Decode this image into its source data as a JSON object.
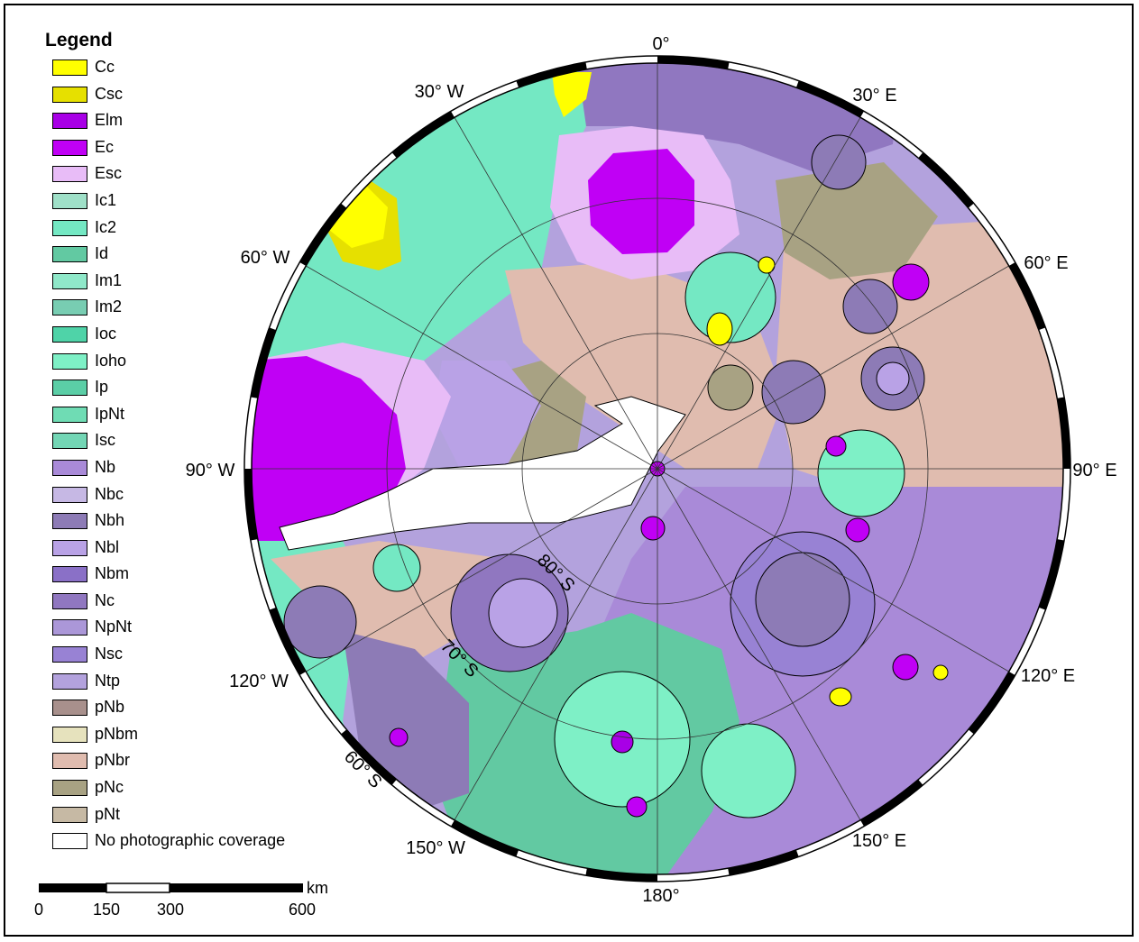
{
  "legend": {
    "title": "Legend",
    "items": [
      {
        "code": "Cc",
        "color": "#ffff00"
      },
      {
        "code": "Csc",
        "color": "#e6e000"
      },
      {
        "code": "Elm",
        "color": "#a800e6"
      },
      {
        "code": "Ec",
        "color": "#c000f5"
      },
      {
        "code": "Esc",
        "color": "#e8bcf7"
      },
      {
        "code": "Ic1",
        "color": "#9fe0c8"
      },
      {
        "code": "Ic2",
        "color": "#74e8c3"
      },
      {
        "code": "Id",
        "color": "#62c9a2"
      },
      {
        "code": "Im1",
        "color": "#8fe8c9"
      },
      {
        "code": "Im2",
        "color": "#78cdb2"
      },
      {
        "code": "Ioc",
        "color": "#4fd3a8"
      },
      {
        "code": "Ioho",
        "color": "#7ef0c6"
      },
      {
        "code": "Ip",
        "color": "#5bcea6"
      },
      {
        "code": "IpNt",
        "color": "#6fdcb4"
      },
      {
        "code": "Isc",
        "color": "#73d6b5"
      },
      {
        "code": "Nb",
        "color": "#a98ad8"
      },
      {
        "code": "Nbc",
        "color": "#c6b8e4"
      },
      {
        "code": "Nbh",
        "color": "#8d7bb6"
      },
      {
        "code": "Nbl",
        "color": "#b9a2e6"
      },
      {
        "code": "Nbm",
        "color": "#8a70c7"
      },
      {
        "code": "Nc",
        "color": "#9077c0"
      },
      {
        "code": "NpNt",
        "color": "#ab97d8"
      },
      {
        "code": "Nsc",
        "color": "#9882d4"
      },
      {
        "code": "Ntp",
        "color": "#b3a2dd"
      },
      {
        "code": "pNb",
        "color": "#a8908c"
      },
      {
        "code": "pNbm",
        "color": "#e6e2bd"
      },
      {
        "code": "pNbr",
        "color": "#e0bcaf"
      },
      {
        "code": "pNc",
        "color": "#a8a283"
      },
      {
        "code": "pNt",
        "color": "#c6b9a4"
      },
      {
        "code": "No photographic coverage",
        "color": "#ffffff"
      }
    ]
  },
  "scale_bar": {
    "unit": "km",
    "ticks": [
      "0",
      "150",
      "300",
      "600"
    ]
  },
  "map": {
    "longitude_labels": {
      "0": "0°",
      "30e": "30° E",
      "60e": "60° E",
      "90e": "90° E",
      "120e": "120° E",
      "150e": "150° E",
      "180": "180°",
      "150w": "150° W",
      "120w": "120° W",
      "90w": "90° W",
      "60w": "60° W",
      "30w": "30° W"
    },
    "latitude_labels": {
      "80s": "80° S",
      "70s": "70° S",
      "60s": "60° S"
    }
  }
}
